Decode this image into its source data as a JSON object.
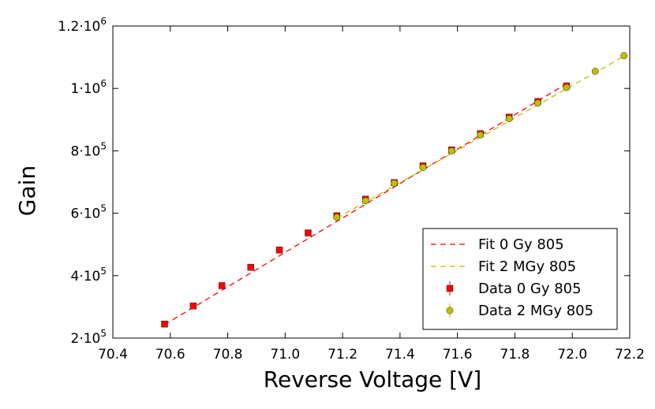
{
  "chart_data": {
    "type": "scatter",
    "xlabel": "Reverse Voltage [V]",
    "ylabel": "Gain",
    "xlim": [
      70.4,
      72.2
    ],
    "ylim": [
      200000,
      1200000
    ],
    "x_ticks": [
      {
        "value": 70.4,
        "label": "70.4"
      },
      {
        "value": 70.6,
        "label": "70.6"
      },
      {
        "value": 70.8,
        "label": "70.8"
      },
      {
        "value": 71.0,
        "label": "71.0"
      },
      {
        "value": 71.2,
        "label": "71.2"
      },
      {
        "value": 71.4,
        "label": "71.4"
      },
      {
        "value": 71.6,
        "label": "71.6"
      },
      {
        "value": 71.8,
        "label": "71.8"
      },
      {
        "value": 72.0,
        "label": "72.0"
      },
      {
        "value": 72.2,
        "label": "72.2"
      }
    ],
    "y_ticks": [
      {
        "value": 200000,
        "mantissa": "2",
        "sep": "·10",
        "exp": "5"
      },
      {
        "value": 400000,
        "mantissa": "4",
        "sep": "·10",
        "exp": "5"
      },
      {
        "value": 600000,
        "mantissa": "6",
        "sep": "·10",
        "exp": "5"
      },
      {
        "value": 800000,
        "mantissa": "8",
        "sep": "·10",
        "exp": "5"
      },
      {
        "value": 1000000,
        "mantissa": "1",
        "sep": "·10",
        "exp": "6"
      },
      {
        "value": 1200000,
        "mantissa": "1.2",
        "sep": "·10",
        "exp": "6"
      }
    ],
    "legend_position": "bottom-right",
    "series": [
      {
        "name": "Fit 0 Gy 805",
        "kind": "dashed-line",
        "color": "#ff0000",
        "x": [
          70.58,
          71.98
        ],
        "y": [
          243000,
          1015000
        ]
      },
      {
        "name": "Fit 2 MGy 805",
        "kind": "dashed-line",
        "color": "#bfbf00",
        "x": [
          71.18,
          72.18
        ],
        "y": [
          584000,
          1103000
        ]
      },
      {
        "name": "Data 0 Gy 805",
        "kind": "square-markers",
        "color": "#ff0000",
        "x": [
          70.58,
          70.68,
          70.78,
          70.88,
          70.98,
          71.08,
          71.18,
          71.28,
          71.38,
          71.48,
          71.58,
          71.68,
          71.78,
          71.88,
          71.98
        ],
        "y": [
          245000,
          303000,
          368000,
          427000,
          482000,
          537000,
          592000,
          645000,
          698000,
          752000,
          803000,
          855000,
          908000,
          958000,
          1008000
        ]
      },
      {
        "name": "Data 2 MGy 805",
        "kind": "circle-markers",
        "color": "#bfbf00",
        "x": [
          71.18,
          71.28,
          71.38,
          71.48,
          71.58,
          71.68,
          71.78,
          71.88,
          71.98,
          72.08,
          72.18
        ],
        "y": [
          587000,
          640000,
          696000,
          747000,
          800000,
          851000,
          903000,
          953000,
          1003000,
          1055000,
          1105000
        ]
      }
    ]
  }
}
